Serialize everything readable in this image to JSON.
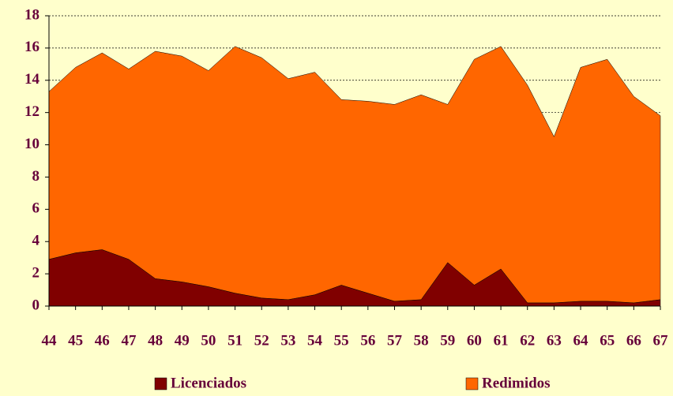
{
  "chart_data": {
    "type": "stacked_area",
    "categories": [
      "44",
      "45",
      "46",
      "47",
      "48",
      "49",
      "50",
      "51",
      "52",
      "53",
      "54",
      "55",
      "56",
      "57",
      "58",
      "59",
      "60",
      "61",
      "62",
      "63",
      "64",
      "65",
      "66",
      "67"
    ],
    "series": [
      {
        "name": "Licenciados",
        "color": "#800000",
        "values": [
          2.9,
          3.3,
          3.5,
          2.9,
          1.7,
          1.5,
          1.2,
          0.8,
          0.5,
          0.4,
          0.7,
          1.3,
          0.8,
          0.3,
          0.4,
          2.7,
          1.3,
          2.3,
          0.2,
          0.2,
          0.3,
          0.3,
          0.2,
          0.4
        ]
      },
      {
        "name": "Redimidos",
        "color": "#ff6600",
        "values": [
          10.4,
          11.5,
          12.2,
          11.8,
          14.1,
          14.0,
          13.4,
          15.3,
          14.9,
          13.7,
          13.8,
          11.5,
          11.9,
          12.2,
          12.7,
          9.8,
          14.0,
          13.8,
          13.5,
          10.3,
          14.5,
          15.0,
          12.8,
          11.4
        ]
      }
    ],
    "ylim": [
      0,
      18
    ],
    "yticks": [
      0,
      2,
      4,
      6,
      8,
      10,
      12,
      14,
      16,
      18
    ],
    "grid": true,
    "legend": "bottom"
  }
}
